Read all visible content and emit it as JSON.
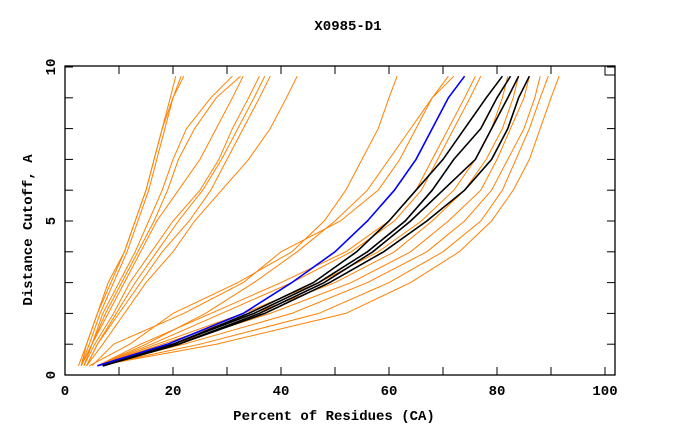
{
  "chart_data": {
    "type": "line",
    "title": "X0985-D1",
    "xlabel": "Percent of Residues (CA)",
    "ylabel": "Distance Cutoff, A",
    "xlim": [
      0,
      102
    ],
    "ylim": [
      0,
      10
    ],
    "xticks": [
      0,
      20,
      40,
      60,
      80,
      100
    ],
    "yticks": [
      0,
      5,
      10
    ],
    "x_minor_step": 10,
    "y_minor_step": 1,
    "grid": false,
    "y_levels": [
      0.3,
      1,
      2,
      3,
      4,
      5,
      6,
      7,
      8,
      9,
      9.7
    ],
    "colors": {
      "other": "#ff8000",
      "highlight": "#0000ff",
      "reference": "#000000"
    },
    "series": [
      {
        "group": "other",
        "x": [
          3,
          4,
          6,
          8,
          11,
          13,
          15,
          16.5,
          18,
          19.5,
          20.5
        ]
      },
      {
        "group": "other",
        "x": [
          3,
          4.5,
          6.5,
          9,
          11.5,
          13.5,
          15.5,
          17,
          18.5,
          20,
          21.5
        ]
      },
      {
        "group": "other",
        "x": [
          2.5,
          4,
          6,
          8.5,
          11,
          13,
          15,
          16.5,
          18,
          20,
          22
        ]
      },
      {
        "group": "other",
        "x": [
          3,
          5,
          7,
          10,
          13,
          15.5,
          18,
          20,
          22.5,
          27,
          31
        ]
      },
      {
        "group": "other",
        "x": [
          3,
          5,
          7.5,
          10.5,
          13.5,
          16.5,
          19,
          21,
          24,
          28,
          32.5
        ]
      },
      {
        "group": "other",
        "x": [
          3.5,
          5,
          8,
          11,
          14,
          17,
          21,
          25,
          28,
          31,
          33
        ]
      },
      {
        "group": "other",
        "x": [
          3.5,
          5.5,
          9,
          12,
          16,
          20,
          25,
          28.5,
          31,
          34,
          36
        ]
      },
      {
        "group": "other",
        "x": [
          4,
          6,
          9.5,
          13,
          17,
          21,
          25.5,
          29,
          32,
          35,
          37
        ]
      },
      {
        "group": "other",
        "x": [
          4,
          6,
          10,
          14,
          18,
          23,
          27,
          30,
          33,
          36,
          38
        ]
      },
      {
        "group": "other",
        "x": [
          4,
          7,
          11,
          15,
          20,
          24,
          29,
          34,
          38,
          41,
          43
        ]
      },
      {
        "group": "other",
        "x": [
          4.5,
          12,
          20,
          32,
          42,
          48,
          52,
          55,
          58,
          60,
          61.5
        ]
      },
      {
        "group": "other",
        "x": [
          5,
          9,
          22,
          33,
          40,
          51,
          58,
          62,
          65,
          68,
          71
        ]
      },
      {
        "group": "other",
        "x": [
          6,
          15,
          26,
          35,
          43,
          50,
          56,
          60,
          64,
          68,
          72
        ]
      },
      {
        "group": "other",
        "x": [
          6,
          14,
          27,
          40,
          52,
          60,
          65,
          68,
          71,
          74,
          76
        ]
      },
      {
        "group": "other",
        "x": [
          6,
          16,
          29,
          42,
          53,
          61,
          66,
          69,
          72,
          75,
          77
        ]
      },
      {
        "group": "other",
        "x": [
          6,
          17,
          33,
          47,
          58,
          66,
          72,
          76,
          79,
          81,
          82
        ]
      },
      {
        "group": "other",
        "x": [
          6,
          18,
          35,
          50,
          61,
          68,
          74,
          78,
          81,
          83,
          84
        ]
      },
      {
        "group": "other",
        "x": [
          6,
          20,
          38,
          53,
          64,
          71,
          77,
          80,
          82.5,
          85,
          86
        ]
      },
      {
        "group": "other",
        "x": [
          6,
          22,
          42,
          56,
          67,
          74,
          79,
          82,
          85,
          87,
          88
        ]
      },
      {
        "group": "other",
        "x": [
          6,
          25,
          47,
          60,
          70,
          77,
          81,
          83.5,
          86,
          88,
          89.5
        ]
      },
      {
        "group": "other",
        "x": [
          6,
          28,
          52,
          64,
          73,
          79,
          83,
          86,
          88,
          90,
          91.5
        ]
      },
      {
        "group": "reference",
        "x": [
          7,
          20,
          34,
          46,
          54,
          60,
          65,
          70,
          74,
          78,
          81
        ]
      },
      {
        "group": "reference",
        "x": [
          7,
          20,
          35,
          47,
          56,
          63,
          68,
          72,
          77,
          80,
          82.5
        ]
      },
      {
        "group": "reference",
        "x": [
          7,
          21,
          36,
          48,
          57,
          64,
          70,
          76,
          79,
          82,
          84
        ]
      },
      {
        "group": "reference",
        "x": [
          7,
          21,
          37,
          49,
          59,
          67,
          74,
          79,
          82,
          84,
          86
        ]
      },
      {
        "group": "highlight",
        "x": [
          6,
          19,
          33,
          42,
          50,
          56,
          61,
          65,
          68,
          71,
          74
        ]
      }
    ]
  }
}
